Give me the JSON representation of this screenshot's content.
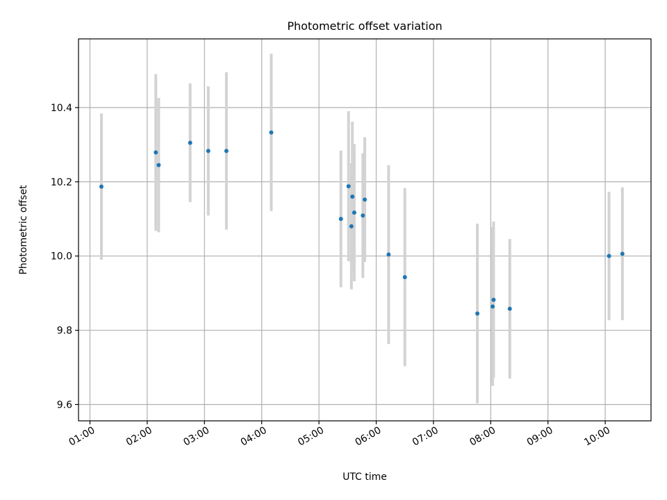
{
  "chart_data": {
    "type": "scatter",
    "title": "Photometric offset variation",
    "xlabel": "UTC time",
    "ylabel": "Photometric offset",
    "x_tick_labels": [
      "01:00",
      "02:00",
      "03:00",
      "04:00",
      "05:00",
      "06:00",
      "07:00",
      "08:00",
      "09:00",
      "10:00"
    ],
    "x_tick_hours": [
      1,
      2,
      3,
      4,
      5,
      6,
      7,
      8,
      9,
      10
    ],
    "y_ticks": [
      9.6,
      9.8,
      10.0,
      10.2,
      10.4
    ],
    "y_tick_labels": [
      "9.6",
      "9.8",
      "10.0",
      "10.2",
      "10.4"
    ],
    "xlim_hours": [
      0.8,
      10.8
    ],
    "ylim": [
      9.556,
      10.585
    ],
    "grid": true,
    "marker_color": "#1f77b4",
    "errorbar_color": "#d3d3d3",
    "points": [
      {
        "time": "01:12",
        "y": 10.187,
        "err": 0.197
      },
      {
        "time": "02:09",
        "y": 10.279,
        "err": 0.211
      },
      {
        "time": "02:12",
        "y": 10.245,
        "err": 0.181
      },
      {
        "time": "02:45",
        "y": 10.305,
        "err": 0.16
      },
      {
        "time": "03:04",
        "y": 10.283,
        "err": 0.174
      },
      {
        "time": "03:23",
        "y": 10.283,
        "err": 0.212
      },
      {
        "time": "04:10",
        "y": 10.333,
        "err": 0.212
      },
      {
        "time": "05:23",
        "y": 10.1,
        "err": 0.184
      },
      {
        "time": "05:31",
        "y": 10.188,
        "err": 0.202
      },
      {
        "time": "05:34",
        "y": 10.08,
        "err": 0.17
      },
      {
        "time": "05:35",
        "y": 10.16,
        "err": 0.202
      },
      {
        "time": "05:37",
        "y": 10.117,
        "err": 0.185
      },
      {
        "time": "05:46",
        "y": 10.109,
        "err": 0.168
      },
      {
        "time": "05:48",
        "y": 10.152,
        "err": 0.168
      },
      {
        "time": "06:13",
        "y": 10.004,
        "err": 0.241
      },
      {
        "time": "06:30",
        "y": 9.943,
        "err": 0.24
      },
      {
        "time": "07:46",
        "y": 9.845,
        "err": 0.242
      },
      {
        "time": "08:02",
        "y": 9.864,
        "err": 0.214
      },
      {
        "time": "08:03",
        "y": 9.882,
        "err": 0.211
      },
      {
        "time": "08:20",
        "y": 9.858,
        "err": 0.188
      },
      {
        "time": "10:04",
        "y": 10.0,
        "err": 0.173
      },
      {
        "time": "10:18",
        "y": 10.006,
        "err": 0.179
      }
    ]
  }
}
